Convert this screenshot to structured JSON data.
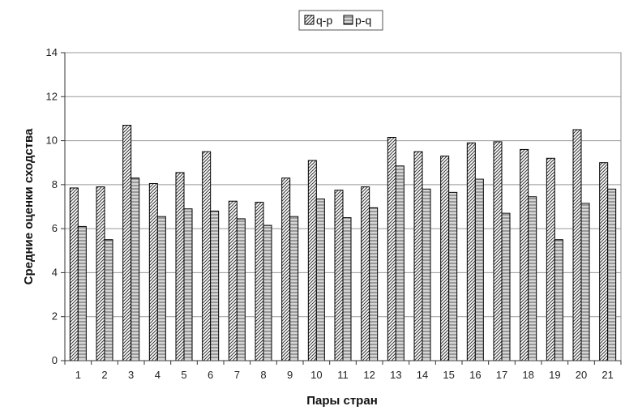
{
  "chart_data": {
    "type": "bar",
    "categories": [
      "1",
      "2",
      "3",
      "4",
      "5",
      "6",
      "7",
      "8",
      "9",
      "10",
      "11",
      "12",
      "13",
      "14",
      "15",
      "16",
      "17",
      "18",
      "19",
      "20",
      "21"
    ],
    "series": [
      {
        "name": "q-p",
        "pattern": "diagonal-hatch",
        "values": [
          7.85,
          7.9,
          10.7,
          8.05,
          8.55,
          9.5,
          7.25,
          7.2,
          8.3,
          9.1,
          7.75,
          7.9,
          10.15,
          9.5,
          9.3,
          9.9,
          9.95,
          9.6,
          9.2,
          10.5,
          9.0
        ]
      },
      {
        "name": "p-q",
        "pattern": "horizontal-lines",
        "values": [
          6.1,
          5.5,
          8.3,
          6.55,
          6.9,
          6.8,
          6.45,
          6.15,
          6.55,
          7.35,
          6.5,
          6.95,
          8.85,
          7.8,
          7.65,
          8.25,
          6.7,
          7.45,
          5.5,
          7.15,
          7.8
        ]
      }
    ],
    "ylabel": "Средние оценки сходства",
    "xlabel": "Пары стран",
    "ylim": [
      0,
      14
    ],
    "yticks": [
      0,
      2,
      4,
      6,
      8,
      10,
      12,
      14
    ],
    "grid": true,
    "legend_position": "top"
  }
}
